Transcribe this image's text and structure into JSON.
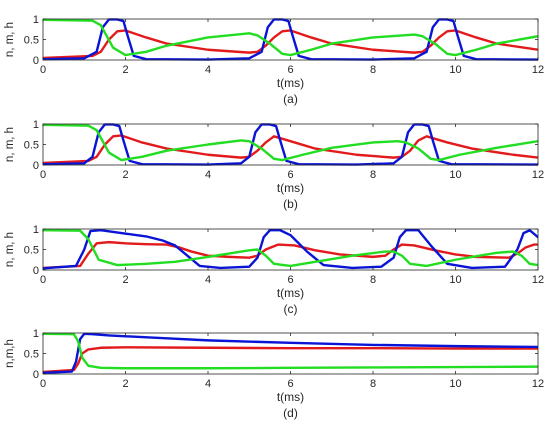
{
  "figure": {
    "colors": {
      "n": "#e31a1c",
      "m": "#0a14d6",
      "h": "#22dd22",
      "axis": "#262626"
    }
  },
  "chart_data": [
    {
      "type": "line",
      "panel_label": "(a)",
      "xlabel": "t(ms)",
      "ylabel": "n, m, h",
      "xlim": [
        0,
        12
      ],
      "ylim": [
        0,
        1
      ],
      "xticks": [
        0,
        2,
        4,
        6,
        8,
        10,
        12
      ],
      "yticks": [
        0,
        0.5,
        1
      ],
      "ytick_labels": [
        "0",
        "0.5",
        "1"
      ],
      "spike_times": [
        1.6,
        5.6,
        9.6
      ],
      "series": [
        {
          "key": "n",
          "color": "#e31a1c",
          "x": [
            0,
            1.2,
            1.4,
            1.6,
            1.8,
            2.0,
            2.5,
            3,
            4,
            5,
            5.2,
            5.4,
            5.6,
            5.8,
            6.0,
            6.5,
            7,
            8,
            9,
            9.2,
            9.4,
            9.6,
            9.8,
            10.0,
            10.5,
            11,
            12
          ],
          "y": [
            0.05,
            0.1,
            0.2,
            0.5,
            0.7,
            0.72,
            0.55,
            0.4,
            0.25,
            0.18,
            0.2,
            0.35,
            0.55,
            0.7,
            0.72,
            0.55,
            0.4,
            0.25,
            0.18,
            0.2,
            0.35,
            0.55,
            0.7,
            0.72,
            0.55,
            0.4,
            0.25
          ]
        },
        {
          "key": "m",
          "color": "#0a14d6",
          "x": [
            0,
            1.0,
            1.3,
            1.45,
            1.6,
            1.8,
            1.95,
            2.05,
            2.2,
            2.5,
            4,
            5.0,
            5.3,
            5.45,
            5.6,
            5.8,
            5.95,
            6.05,
            6.2,
            6.5,
            8,
            9.0,
            9.3,
            9.45,
            9.6,
            9.8,
            9.95,
            10.05,
            10.2,
            10.5,
            12
          ],
          "y": [
            0.02,
            0.04,
            0.2,
            0.8,
            0.99,
            0.99,
            0.95,
            0.6,
            0.1,
            0.02,
            0.01,
            0.04,
            0.2,
            0.8,
            0.99,
            0.99,
            0.95,
            0.6,
            0.1,
            0.02,
            0.01,
            0.04,
            0.2,
            0.8,
            0.99,
            0.99,
            0.95,
            0.6,
            0.1,
            0.02,
            0.01
          ]
        },
        {
          "key": "h",
          "color": "#22dd22",
          "x": [
            0,
            1.2,
            1.4,
            1.7,
            2.0,
            2.5,
            3,
            4,
            5,
            5.2,
            5.5,
            5.8,
            6.0,
            6.5,
            7,
            8,
            9,
            9.2,
            9.5,
            9.8,
            10.0,
            10.5,
            11,
            12
          ],
          "y": [
            0.98,
            0.96,
            0.85,
            0.3,
            0.12,
            0.2,
            0.35,
            0.55,
            0.65,
            0.6,
            0.4,
            0.15,
            0.12,
            0.25,
            0.4,
            0.55,
            0.62,
            0.58,
            0.4,
            0.15,
            0.12,
            0.25,
            0.4,
            0.58
          ]
        }
      ]
    },
    {
      "type": "line",
      "panel_label": "(b)",
      "xlabel": "t(ms)",
      "ylabel": "n, m, h",
      "xlim": [
        0,
        12
      ],
      "ylim": [
        0,
        1
      ],
      "xticks": [
        0,
        2,
        4,
        6,
        8,
        10,
        12
      ],
      "yticks": [
        0,
        0.5,
        1
      ],
      "ytick_labels": [
        "0",
        "0.5",
        "1"
      ],
      "spike_times": [
        1.5,
        5.3,
        9.0
      ],
      "series": [
        {
          "key": "n",
          "color": "#e31a1c",
          "x": [
            0,
            1.1,
            1.3,
            1.5,
            1.7,
            1.9,
            2.4,
            3,
            4,
            4.8,
            5.0,
            5.2,
            5.4,
            5.6,
            6.1,
            6.6,
            7.6,
            8.5,
            8.7,
            8.9,
            9.1,
            9.3,
            9.8,
            10.4,
            11.4,
            12
          ],
          "y": [
            0.05,
            0.1,
            0.2,
            0.5,
            0.7,
            0.72,
            0.55,
            0.4,
            0.25,
            0.18,
            0.2,
            0.35,
            0.55,
            0.7,
            0.55,
            0.4,
            0.25,
            0.18,
            0.2,
            0.35,
            0.6,
            0.7,
            0.55,
            0.4,
            0.25,
            0.18
          ]
        },
        {
          "key": "m",
          "color": "#0a14d6",
          "x": [
            0,
            1.0,
            1.2,
            1.35,
            1.5,
            1.7,
            1.85,
            1.95,
            2.1,
            2.4,
            4,
            4.8,
            5.0,
            5.15,
            5.3,
            5.5,
            5.65,
            5.75,
            5.9,
            6.2,
            7.6,
            8.5,
            8.7,
            8.85,
            9.0,
            9.2,
            9.35,
            9.45,
            9.6,
            9.9,
            12
          ],
          "y": [
            0.02,
            0.04,
            0.2,
            0.8,
            0.99,
            0.99,
            0.95,
            0.6,
            0.1,
            0.02,
            0.01,
            0.04,
            0.2,
            0.8,
            0.99,
            0.99,
            0.95,
            0.6,
            0.1,
            0.02,
            0.01,
            0.04,
            0.2,
            0.8,
            0.99,
            0.99,
            0.95,
            0.6,
            0.1,
            0.02,
            0.01
          ]
        },
        {
          "key": "h",
          "color": "#22dd22",
          "x": [
            0,
            1.1,
            1.3,
            1.6,
            1.9,
            2.4,
            3,
            4,
            4.8,
            5.0,
            5.3,
            5.6,
            5.8,
            6.3,
            7,
            8,
            8.6,
            8.8,
            9.1,
            9.4,
            9.6,
            10.1,
            11,
            12
          ],
          "y": [
            0.98,
            0.96,
            0.85,
            0.3,
            0.12,
            0.2,
            0.35,
            0.5,
            0.6,
            0.58,
            0.4,
            0.15,
            0.12,
            0.25,
            0.42,
            0.55,
            0.58,
            0.55,
            0.4,
            0.15,
            0.12,
            0.25,
            0.42,
            0.58
          ]
        }
      ]
    },
    {
      "type": "line",
      "panel_label": "(c)",
      "xlabel": "t(ms)",
      "ylabel": "n, m, h",
      "xlim": [
        0,
        12
      ],
      "ylim": [
        0,
        1
      ],
      "xticks": [
        0,
        2,
        4,
        6,
        8,
        10,
        12
      ],
      "yticks": [
        0,
        0.5,
        1
      ],
      "ytick_labels": [
        "0",
        "0.5",
        "1"
      ],
      "spike_times": [
        1.2,
        5.4,
        8.7,
        11.8
      ],
      "series": [
        {
          "key": "n",
          "color": "#e31a1c",
          "x": [
            0,
            0.9,
            1.1,
            1.3,
            1.6,
            2,
            2.5,
            3.0,
            3.3,
            3.6,
            4.0,
            4.5,
            5.0,
            5.2,
            5.4,
            5.7,
            6.1,
            6.6,
            7.2,
            8.0,
            8.3,
            8.5,
            8.7,
            9.0,
            9.5,
            10,
            10.5,
            11.3,
            11.5,
            11.7,
            11.9,
            12
          ],
          "y": [
            0.05,
            0.1,
            0.4,
            0.65,
            0.68,
            0.65,
            0.63,
            0.62,
            0.55,
            0.45,
            0.35,
            0.32,
            0.3,
            0.35,
            0.5,
            0.62,
            0.6,
            0.48,
            0.38,
            0.32,
            0.35,
            0.5,
            0.62,
            0.6,
            0.48,
            0.38,
            0.32,
            0.3,
            0.4,
            0.55,
            0.62,
            0.62
          ]
        },
        {
          "key": "m",
          "color": "#0a14d6",
          "x": [
            0,
            0.8,
            1.0,
            1.15,
            1.4,
            1.9,
            2.5,
            2.9,
            3.2,
            3.5,
            3.8,
            4.3,
            5.0,
            5.2,
            5.35,
            5.5,
            5.75,
            6.0,
            6.4,
            6.8,
            7.5,
            8.2,
            8.5,
            8.65,
            8.8,
            9.1,
            9.4,
            9.8,
            10.4,
            11.2,
            11.5,
            11.65,
            11.8,
            12
          ],
          "y": [
            0.04,
            0.1,
            0.5,
            0.95,
            0.97,
            0.9,
            0.82,
            0.72,
            0.6,
            0.35,
            0.1,
            0.05,
            0.08,
            0.3,
            0.8,
            0.97,
            0.97,
            0.85,
            0.45,
            0.12,
            0.05,
            0.08,
            0.3,
            0.8,
            0.97,
            0.97,
            0.6,
            0.15,
            0.05,
            0.08,
            0.5,
            0.9,
            0.97,
            0.8
          ]
        },
        {
          "key": "h",
          "color": "#22dd22",
          "x": [
            0,
            0.9,
            1.1,
            1.35,
            1.8,
            2.5,
            3.2,
            4.0,
            5.0,
            5.2,
            5.4,
            5.6,
            6.0,
            6.6,
            7.5,
            8.3,
            8.5,
            8.7,
            8.9,
            9.3,
            10,
            11,
            11.4,
            11.6,
            11.8,
            12
          ],
          "y": [
            0.97,
            0.96,
            0.75,
            0.25,
            0.12,
            0.15,
            0.2,
            0.32,
            0.48,
            0.5,
            0.35,
            0.15,
            0.1,
            0.2,
            0.35,
            0.45,
            0.45,
            0.35,
            0.15,
            0.1,
            0.25,
            0.42,
            0.45,
            0.35,
            0.15,
            0.12
          ]
        }
      ]
    },
    {
      "type": "line",
      "panel_label": "(d)",
      "xlabel": "t(ms)",
      "ylabel": "n,m,h",
      "xlim": [
        0,
        12
      ],
      "ylim": [
        0,
        1
      ],
      "xticks": [
        0,
        2,
        4,
        6,
        8,
        10,
        12
      ],
      "yticks": [
        0,
        0.5,
        1
      ],
      "ytick_labels": [
        "0",
        "0.5",
        "1"
      ],
      "spike_times": [
        0.9
      ],
      "series": [
        {
          "key": "n",
          "color": "#e31a1c",
          "x": [
            0,
            0.75,
            0.85,
            0.95,
            1.1,
            1.4,
            2,
            4,
            6,
            8,
            10,
            12
          ],
          "y": [
            0.05,
            0.1,
            0.25,
            0.5,
            0.6,
            0.64,
            0.65,
            0.64,
            0.63,
            0.63,
            0.62,
            0.62
          ]
        },
        {
          "key": "m",
          "color": "#0a14d6",
          "x": [
            0,
            0.7,
            0.8,
            0.9,
            1.0,
            1.2,
            1.6,
            2,
            3,
            4,
            6,
            8,
            10,
            12
          ],
          "y": [
            0.03,
            0.06,
            0.3,
            0.85,
            0.98,
            0.97,
            0.94,
            0.92,
            0.87,
            0.82,
            0.76,
            0.71,
            0.68,
            0.66
          ]
        },
        {
          "key": "h",
          "color": "#22dd22",
          "x": [
            0,
            0.75,
            0.85,
            0.95,
            1.1,
            1.4,
            2,
            4,
            6,
            8,
            10,
            12
          ],
          "y": [
            0.98,
            0.97,
            0.8,
            0.4,
            0.2,
            0.15,
            0.14,
            0.14,
            0.15,
            0.16,
            0.17,
            0.18
          ]
        }
      ]
    }
  ]
}
